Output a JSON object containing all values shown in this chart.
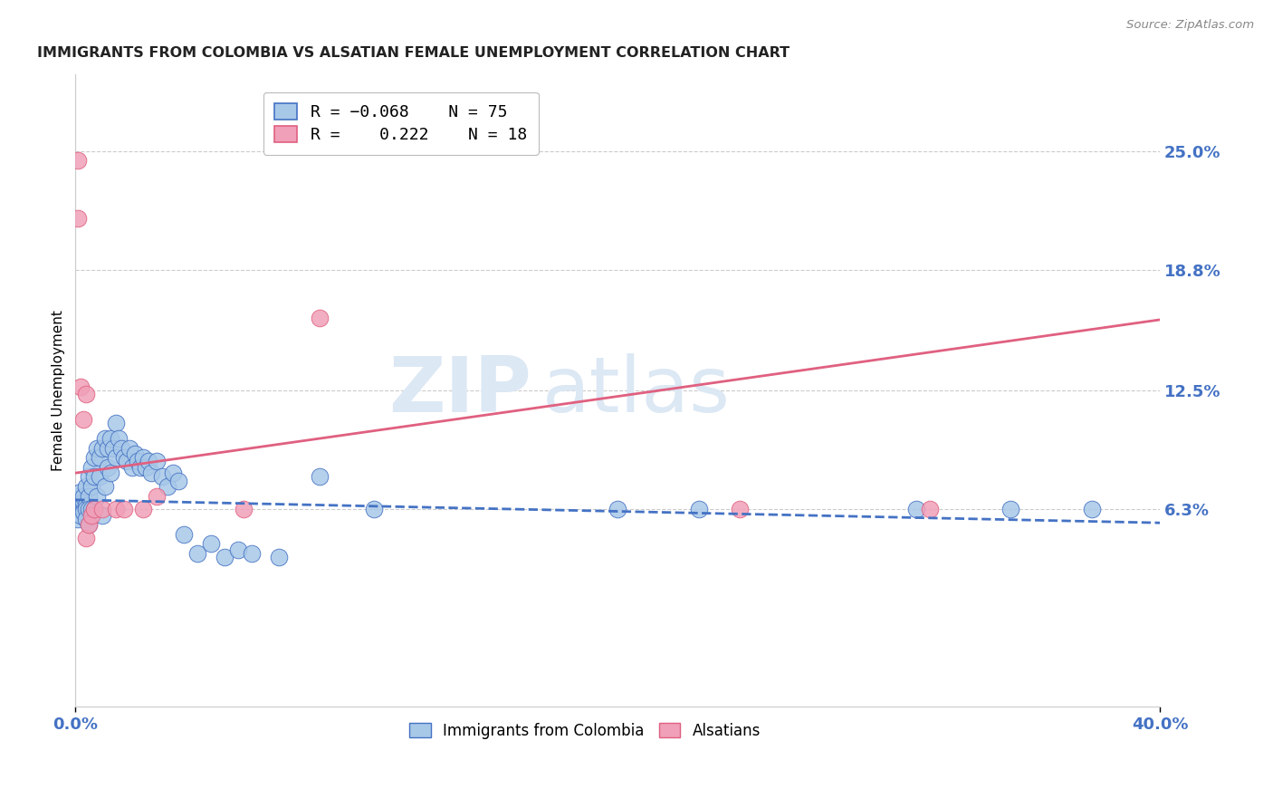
{
  "title": "IMMIGRANTS FROM COLOMBIA VS ALSATIAN FEMALE UNEMPLOYMENT CORRELATION CHART",
  "source": "Source: ZipAtlas.com",
  "ylabel": "Female Unemployment",
  "xlim": [
    0.0,
    0.4
  ],
  "ylim": [
    -0.04,
    0.29
  ],
  "yticks": [
    0.063,
    0.125,
    0.188,
    0.25
  ],
  "ytick_labels": [
    "6.3%",
    "12.5%",
    "18.8%",
    "25.0%"
  ],
  "xtick_labels": [
    "0.0%",
    "40.0%"
  ],
  "grid_color": "#cccccc",
  "background_color": "#ffffff",
  "color_blue": "#a8c8e8",
  "color_pink": "#f0a0b8",
  "line_blue": "#4472c4",
  "line_pink": "#e06080",
  "title_color": "#222222",
  "source_color": "#888888",
  "tick_color": "#4472c4",
  "watermark_color": "#dce8f4",
  "colombia_x": [
    0.001,
    0.001,
    0.001,
    0.001,
    0.001,
    0.002,
    0.002,
    0.002,
    0.002,
    0.002,
    0.003,
    0.003,
    0.003,
    0.003,
    0.004,
    0.004,
    0.004,
    0.004,
    0.005,
    0.005,
    0.005,
    0.005,
    0.006,
    0.006,
    0.006,
    0.007,
    0.007,
    0.007,
    0.008,
    0.008,
    0.009,
    0.009,
    0.01,
    0.01,
    0.011,
    0.011,
    0.012,
    0.012,
    0.013,
    0.013,
    0.014,
    0.015,
    0.015,
    0.016,
    0.017,
    0.018,
    0.019,
    0.02,
    0.021,
    0.022,
    0.023,
    0.024,
    0.025,
    0.026,
    0.027,
    0.028,
    0.03,
    0.032,
    0.034,
    0.036,
    0.038,
    0.04,
    0.045,
    0.05,
    0.055,
    0.06,
    0.065,
    0.075,
    0.09,
    0.11,
    0.2,
    0.23,
    0.31,
    0.345,
    0.375
  ],
  "colombia_y": [
    0.063,
    0.065,
    0.068,
    0.07,
    0.058,
    0.063,
    0.066,
    0.069,
    0.06,
    0.072,
    0.063,
    0.067,
    0.07,
    0.062,
    0.075,
    0.065,
    0.063,
    0.058,
    0.08,
    0.07,
    0.063,
    0.055,
    0.085,
    0.075,
    0.063,
    0.09,
    0.08,
    0.063,
    0.095,
    0.07,
    0.09,
    0.08,
    0.095,
    0.06,
    0.1,
    0.075,
    0.095,
    0.085,
    0.1,
    0.082,
    0.095,
    0.108,
    0.09,
    0.1,
    0.095,
    0.09,
    0.088,
    0.095,
    0.085,
    0.092,
    0.088,
    0.085,
    0.09,
    0.085,
    0.088,
    0.082,
    0.088,
    0.08,
    0.075,
    0.082,
    0.078,
    0.05,
    0.04,
    0.045,
    0.038,
    0.042,
    0.04,
    0.038,
    0.08,
    0.063,
    0.063,
    0.063,
    0.063,
    0.063,
    0.063
  ],
  "alsatian_x": [
    0.001,
    0.001,
    0.002,
    0.003,
    0.004,
    0.004,
    0.005,
    0.006,
    0.007,
    0.01,
    0.015,
    0.018,
    0.025,
    0.03,
    0.062,
    0.09,
    0.245,
    0.315
  ],
  "alsatian_y": [
    0.245,
    0.215,
    0.127,
    0.11,
    0.123,
    0.048,
    0.055,
    0.06,
    0.063,
    0.063,
    0.063,
    0.063,
    0.063,
    0.07,
    0.063,
    0.163,
    0.063,
    0.063
  ],
  "blue_line_x": [
    0.0,
    0.4
  ],
  "blue_line_y": [
    0.068,
    0.056
  ],
  "pink_line_x": [
    0.0,
    0.4
  ],
  "pink_line_y": [
    0.082,
    0.162
  ]
}
